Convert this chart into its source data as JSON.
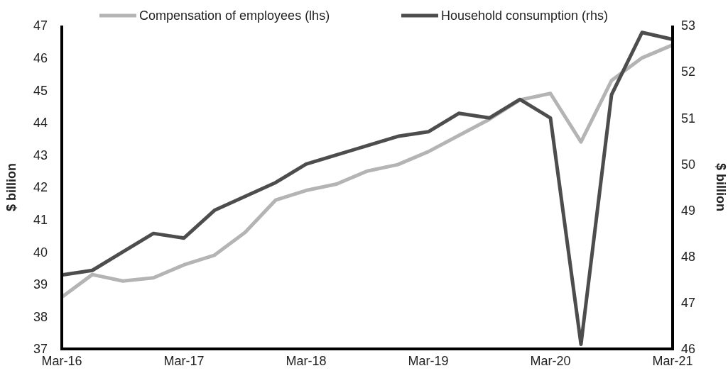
{
  "chart_data": {
    "type": "line",
    "categories": [
      "Mar-16",
      null,
      null,
      null,
      "Mar-17",
      null,
      null,
      null,
      "Mar-18",
      null,
      null,
      null,
      "Mar-19",
      null,
      null,
      null,
      "Mar-20",
      null,
      null,
      null,
      "Mar-21"
    ],
    "series": [
      {
        "name": "Compensation of employees (lhs)",
        "color": "#b4b4b4",
        "values": [
          38.6,
          39.3,
          39.1,
          39.2,
          39.6,
          39.9,
          40.6,
          41.6,
          41.9,
          42.1,
          42.5,
          42.7,
          43.1,
          43.6,
          44.1,
          44.7,
          44.9,
          43.4,
          45.3,
          46.0,
          46.4
        ]
      },
      {
        "name": "Household consumption (rhs)",
        "color": "#4d4d4d",
        "axis": "y2",
        "values": [
          47.6,
          47.7,
          48.1,
          48.5,
          48.4,
          49.0,
          49.3,
          49.6,
          50.0,
          50.2,
          50.4,
          50.6,
          50.7,
          51.1,
          51.0,
          51.4,
          51.0,
          46.1,
          51.5,
          52.85,
          52.7
        ]
      }
    ],
    "ylabel": "$ billion",
    "y2label": "$ billion",
    "ylim": [
      37,
      47
    ],
    "yticks": [
      37,
      38,
      39,
      40,
      41,
      42,
      43,
      44,
      45,
      46,
      47
    ],
    "y2lim": [
      46,
      53
    ],
    "y2ticks": [
      46,
      47,
      48,
      49,
      50,
      51,
      52,
      53
    ],
    "legend": "top",
    "grid": false,
    "marker": "none",
    "line_style": "solid"
  }
}
